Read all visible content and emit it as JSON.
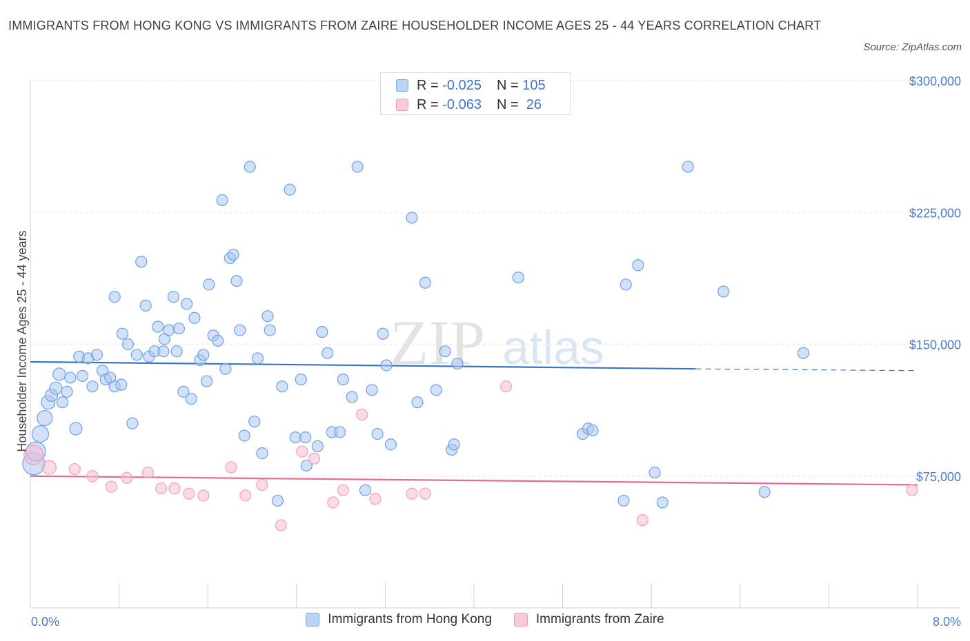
{
  "title": "IMMIGRANTS FROM HONG KONG VS IMMIGRANTS FROM ZAIRE HOUSEHOLDER INCOME AGES 25 - 44 YEARS CORRELATION CHART",
  "source": "Source: ZipAtlas.com",
  "watermark": {
    "zip": "ZIP",
    "atlas": "atlas"
  },
  "colors": {
    "blue": "#6fa0e6",
    "blue_line": "#3874c8",
    "pink": "#f2a0bb",
    "pink_line": "#e56b97",
    "tick_text": "#4a7cc9"
  },
  "legend": {
    "rows": [
      {
        "r_label": "R = ",
        "r_value": "-0.025",
        "n_label": "N = ",
        "n_value": "105"
      },
      {
        "r_label": "R = ",
        "r_value": "-0.063",
        "n_label": "N = ",
        "n_value": " 26"
      }
    ]
  },
  "chart_data": {
    "type": "scatter",
    "xlabel": "",
    "ylabel": "Householder Income Ages 25 - 44 years",
    "xlim": [
      0,
      8
    ],
    "ylim": [
      0,
      300000
    ],
    "x_tick_labels": [
      "0.0%",
      "8.0%"
    ],
    "y_ticks": [
      75000,
      150000,
      225000,
      300000
    ],
    "y_tick_labels": [
      "$75,000",
      "$150,000",
      "$225,000",
      "$300,000"
    ],
    "grid": true,
    "legend_position": "bottom-center",
    "series": [
      {
        "name": "Immigrants from Hong Kong",
        "color": "blue",
        "trend": {
          "x0": 0,
          "y0": 140000,
          "x1": 6.0,
          "y1": 136000,
          "dashed_to_x": 8.0,
          "dashed_y1": 135000
        },
        "points": [
          [
            0.03,
            82000,
            16
          ],
          [
            0.05,
            89000,
            14
          ],
          [
            0.09,
            99000,
            12
          ],
          [
            0.13,
            108000,
            11
          ],
          [
            0.16,
            117000,
            10
          ],
          [
            0.19,
            121000,
            9
          ],
          [
            0.23,
            125000,
            9
          ],
          [
            0.26,
            133000,
            9
          ],
          [
            0.29,
            117000,
            8
          ],
          [
            0.33,
            123000,
            8
          ],
          [
            0.36,
            131000,
            8
          ],
          [
            0.41,
            102000,
            9
          ],
          [
            0.44,
            143000,
            8
          ],
          [
            0.47,
            132000,
            8
          ],
          [
            0.52,
            142000,
            8
          ],
          [
            0.56,
            126000,
            8
          ],
          [
            0.6,
            144000,
            8
          ],
          [
            0.65,
            135000,
            8
          ],
          [
            0.68,
            130000,
            8
          ],
          [
            0.72,
            131000,
            8
          ],
          [
            0.76,
            126000,
            8
          ],
          [
            0.82,
            127000,
            8
          ],
          [
            0.76,
            177000,
            8
          ],
          [
            0.83,
            156000,
            8
          ],
          [
            0.88,
            150000,
            8
          ],
          [
            0.92,
            105000,
            8
          ],
          [
            0.96,
            144000,
            8
          ],
          [
            1.0,
            197000,
            8
          ],
          [
            1.04,
            172000,
            8
          ],
          [
            1.07,
            143000,
            8
          ],
          [
            1.12,
            146000,
            8
          ],
          [
            1.15,
            160000,
            8
          ],
          [
            1.2,
            146000,
            8
          ],
          [
            1.21,
            153000,
            8
          ],
          [
            1.25,
            158000,
            8
          ],
          [
            1.29,
            177000,
            8
          ],
          [
            1.32,
            146000,
            8
          ],
          [
            1.34,
            159000,
            8
          ],
          [
            1.38,
            123000,
            8
          ],
          [
            1.41,
            173000,
            8
          ],
          [
            1.45,
            119000,
            8
          ],
          [
            1.48,
            165000,
            8
          ],
          [
            1.53,
            141000,
            8
          ],
          [
            1.56,
            144000,
            8
          ],
          [
            1.59,
            129000,
            8
          ],
          [
            1.61,
            184000,
            8
          ],
          [
            1.65,
            155000,
            8
          ],
          [
            1.69,
            152000,
            8
          ],
          [
            1.73,
            232000,
            8
          ],
          [
            1.76,
            136000,
            8
          ],
          [
            1.8,
            199000,
            8
          ],
          [
            1.83,
            201000,
            8
          ],
          [
            1.86,
            186000,
            8
          ],
          [
            1.89,
            158000,
            8
          ],
          [
            1.93,
            98000,
            8
          ],
          [
            1.98,
            251000,
            8
          ],
          [
            2.02,
            106000,
            8
          ],
          [
            2.05,
            142000,
            8
          ],
          [
            2.09,
            88000,
            8
          ],
          [
            2.14,
            166000,
            8
          ],
          [
            2.16,
            158000,
            8
          ],
          [
            2.23,
            61000,
            8
          ],
          [
            2.27,
            126000,
            8
          ],
          [
            2.34,
            238000,
            8
          ],
          [
            2.39,
            97000,
            8
          ],
          [
            2.44,
            130000,
            8
          ],
          [
            2.48,
            97000,
            8
          ],
          [
            2.49,
            81000,
            8
          ],
          [
            2.59,
            92000,
            8
          ],
          [
            2.63,
            157000,
            8
          ],
          [
            2.68,
            145000,
            8
          ],
          [
            2.72,
            100000,
            8
          ],
          [
            2.79,
            100000,
            8
          ],
          [
            2.82,
            130000,
            8
          ],
          [
            2.9,
            120000,
            8
          ],
          [
            2.95,
            251000,
            8
          ],
          [
            3.02,
            67000,
            8
          ],
          [
            3.08,
            124000,
            8
          ],
          [
            3.13,
            99000,
            8
          ],
          [
            3.18,
            156000,
            8
          ],
          [
            3.21,
            138000,
            8
          ],
          [
            3.25,
            93000,
            8
          ],
          [
            3.44,
            222000,
            8
          ],
          [
            3.49,
            117000,
            8
          ],
          [
            3.56,
            185000,
            8
          ],
          [
            3.66,
            124000,
            8
          ],
          [
            3.74,
            146000,
            8
          ],
          [
            3.8,
            90000,
            8
          ],
          [
            3.82,
            93000,
            8
          ],
          [
            3.85,
            139000,
            8
          ],
          [
            4.4,
            188000,
            8
          ],
          [
            4.98,
            99000,
            8
          ],
          [
            5.03,
            102000,
            8
          ],
          [
            5.07,
            101000,
            8
          ],
          [
            5.35,
            61000,
            8
          ],
          [
            5.37,
            184000,
            8
          ],
          [
            5.48,
            195000,
            8
          ],
          [
            5.63,
            77000,
            8
          ],
          [
            5.7,
            60000,
            8
          ],
          [
            5.93,
            251000,
            8
          ],
          [
            6.25,
            180000,
            8
          ],
          [
            6.62,
            66000,
            8
          ],
          [
            6.97,
            145000,
            8
          ]
        ]
      },
      {
        "name": "Immigrants from Zaire",
        "color": "pink",
        "trend": {
          "x0": 0,
          "y0": 75000,
          "x1": 8.0,
          "y1": 70000
        },
        "points": [
          [
            0.03,
            87000,
            14
          ],
          [
            0.17,
            80000,
            10
          ],
          [
            0.4,
            79000,
            8
          ],
          [
            0.56,
            75000,
            8
          ],
          [
            0.73,
            69000,
            8
          ],
          [
            0.87,
            74000,
            8
          ],
          [
            1.06,
            77000,
            8
          ],
          [
            1.18,
            68000,
            8
          ],
          [
            1.3,
            68000,
            8
          ],
          [
            1.43,
            65000,
            8
          ],
          [
            1.56,
            64000,
            8
          ],
          [
            1.81,
            80000,
            8
          ],
          [
            1.94,
            64000,
            8
          ],
          [
            2.09,
            70000,
            8
          ],
          [
            2.26,
            47000,
            8
          ],
          [
            2.45,
            89000,
            8
          ],
          [
            2.56,
            85000,
            8
          ],
          [
            2.73,
            60000,
            8
          ],
          [
            2.82,
            67000,
            8
          ],
          [
            2.99,
            110000,
            8
          ],
          [
            3.11,
            62000,
            8
          ],
          [
            3.44,
            65000,
            8
          ],
          [
            3.56,
            65000,
            8
          ],
          [
            4.29,
            126000,
            8
          ],
          [
            5.52,
            50000,
            8
          ],
          [
            7.95,
            67000,
            8
          ]
        ]
      }
    ]
  }
}
